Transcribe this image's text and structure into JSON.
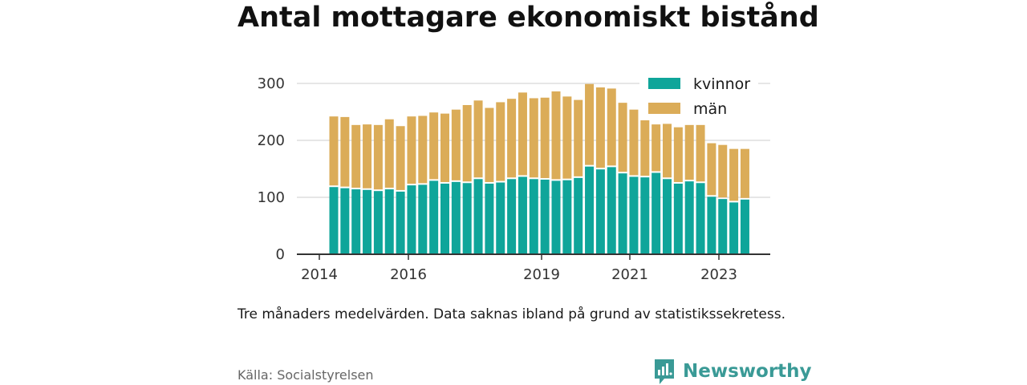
{
  "title": "Antal mottagare ekonomiskt bistånd",
  "note": "Tre månaders medelvärden. Data saknas ibland på grund av statistikssekretess.",
  "source": "Källa: Socialstyrelsen",
  "brand": {
    "name": "Newsworthy",
    "icon": "newsworthy-logo-icon",
    "color": "#3a9a96"
  },
  "colors": {
    "kvinnor": "#0fa59a",
    "man": "#dbac58",
    "grid": "#dddddd",
    "axis": "#333333"
  },
  "chart_data": {
    "type": "bar",
    "stacked": true,
    "x_ticks": [
      "2014",
      "2016",
      "2019",
      "2021",
      "2023"
    ],
    "categories": [
      "",
      "",
      "",
      "",
      "",
      "",
      "",
      "",
      "",
      "",
      "",
      "",
      "",
      "",
      "",
      "",
      "",
      "",
      "",
      "",
      "",
      "",
      "",
      "",
      "",
      "",
      "",
      "",
      "",
      "",
      "",
      "",
      "",
      "",
      "",
      "",
      "",
      "",
      "",
      ""
    ],
    "series": [
      {
        "name": "kvinnor",
        "values": [
          118,
          116,
          114,
          113,
          111,
          114,
          110,
          121,
          122,
          129,
          124,
          127,
          125,
          132,
          124,
          126,
          132,
          136,
          132,
          131,
          129,
          130,
          134,
          154,
          149,
          153,
          142,
          136,
          135,
          143,
          132,
          124,
          128,
          125,
          101,
          97,
          91,
          96,
          0,
          0
        ]
      },
      {
        "name": "män",
        "values": [
          124,
          125,
          113,
          115,
          116,
          123,
          115,
          121,
          121,
          120,
          123,
          127,
          137,
          138,
          133,
          141,
          141,
          148,
          142,
          144,
          157,
          147,
          137,
          145,
          144,
          138,
          124,
          118,
          110,
          85,
          97,
          99,
          99,
          102,
          94,
          95,
          94,
          89,
          0,
          0
        ]
      }
    ],
    "ylim": [
      0,
      300
    ],
    "yticks": [
      0,
      100,
      200,
      300
    ],
    "legend_position": "top-right",
    "grid": true,
    "xlabel": "",
    "ylabel": ""
  }
}
